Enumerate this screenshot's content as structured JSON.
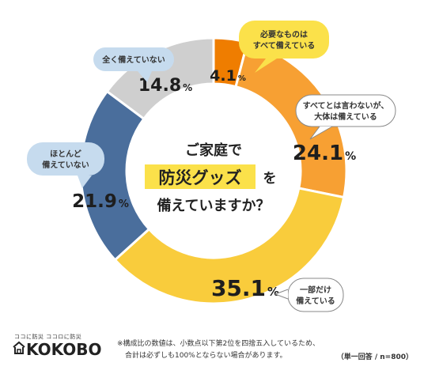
{
  "chart_data": {
    "type": "pie",
    "variant": "donut",
    "title_lines": [
      "ご家庭で",
      "防災グッズ",
      "を",
      "備えていますか？"
    ],
    "unit": "%",
    "slices": [
      {
        "label": "必要なものは\nすべて備えている",
        "value": 4.1,
        "display": "4.1",
        "color": "#ef7d00"
      },
      {
        "label": "すべてとは言わないが、\n大体は備えている",
        "value": 24.1,
        "display": "24.1",
        "color": "#f7a033"
      },
      {
        "label": "一部だけ\n備えている",
        "value": 35.1,
        "display": "35.1",
        "color": "#f9cc3c"
      },
      {
        "label": "ほとんど\n備えていない",
        "value": 21.9,
        "display": "21.9",
        "color": "#4a6e9c"
      },
      {
        "label": "全く備えていない",
        "value": 14.8,
        "display": "14.8",
        "color": "#cfcfcf"
      }
    ]
  },
  "footer": {
    "logo_tagline": "ココに防災 ココロに防災",
    "logo_text": "KOKOBO",
    "note_line1": "※構成比の数値は、小数点以下第2位を四捨五入しているため、",
    "note_line2": "合計は必ずしも100%とならない場合があります。",
    "sample": "（単一回答 / n=800）"
  }
}
